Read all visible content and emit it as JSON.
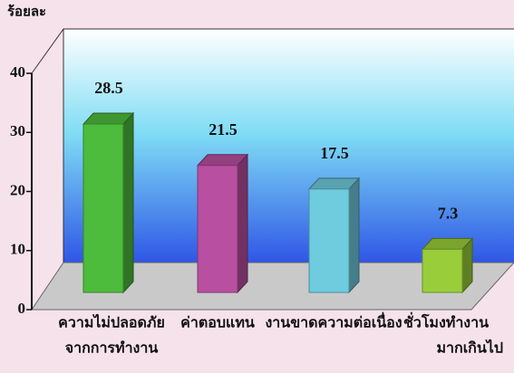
{
  "chart_data": {
    "type": "bar3d",
    "y_label": "ร้อยละ",
    "categories": [
      [
        "ความไม่ปลอดภัย",
        "จากการทำงาน"
      ],
      [
        "ค่าตอบแทน"
      ],
      [
        "งานขาดความต่อเนื่อง"
      ],
      [
        "ชั่วโมงทำงาน",
        "มากเกินไป"
      ]
    ],
    "values": [
      28.5,
      21.5,
      17.5,
      7.3
    ],
    "colors": [
      "#4dbb3c",
      "#b84fa0",
      "#6fcbde",
      "#9acd3a"
    ],
    "ylim": [
      0,
      40
    ],
    "yticks": [
      0,
      10,
      20,
      30,
      40
    ]
  }
}
